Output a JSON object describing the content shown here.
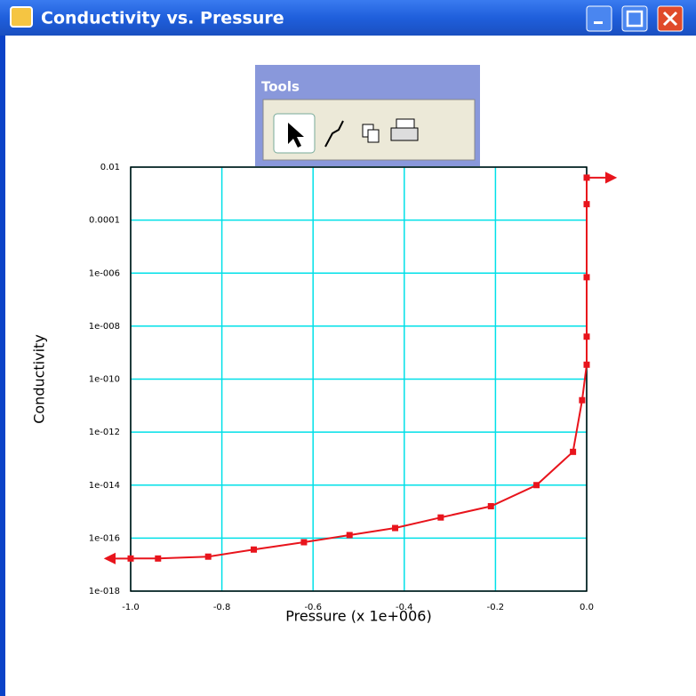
{
  "window": {
    "title": "Conductivity vs. Pressure"
  },
  "tools": {
    "title": "Tools"
  },
  "chart_data": {
    "type": "line",
    "x_label": "Pressure (x 1e+006)",
    "y_label": "Conductivity",
    "x": [
      -1.0,
      -0.94,
      -0.83,
      -0.73,
      -0.62,
      -0.52,
      -0.42,
      -0.32,
      -0.21,
      -0.11,
      -0.03,
      -0.01,
      0,
      0,
      0,
      0,
      0
    ],
    "values": [
      1.7e-17,
      1.7e-17,
      2e-17,
      3.7e-17,
      7e-17,
      1.3e-16,
      2.4e-16,
      6e-16,
      1.6e-15,
      1e-14,
      1.8e-13,
      1.6e-11,
      3.5e-10,
      4e-09,
      7e-07,
      0.0004,
      0.004
    ],
    "color": "#e8141c",
    "log_y": true,
    "grid": true,
    "grid_color": "#00e0e8",
    "xlim": [
      -1,
      0
    ],
    "xticks": [
      {
        "value": -1,
        "label": "-1.0"
      },
      -0.8,
      -0.6,
      -0.4,
      -0.2,
      {
        "value": 0,
        "label": "0.0"
      }
    ],
    "ylim": [
      1e-18,
      0.01
    ],
    "yticks": [
      0.01,
      0.0001,
      {
        "value": 1e-06,
        "label": "1e-006"
      },
      {
        "value": 1e-08,
        "label": "1e-008"
      },
      {
        "value": 1e-10,
        "label": "1e-010"
      },
      {
        "value": 1e-12,
        "label": "1e-012"
      },
      {
        "value": 1e-14,
        "label": "1e-014"
      },
      {
        "value": 1e-16,
        "label": "1e-016"
      },
      {
        "value": 1e-18,
        "label": "1e-018"
      }
    ]
  }
}
